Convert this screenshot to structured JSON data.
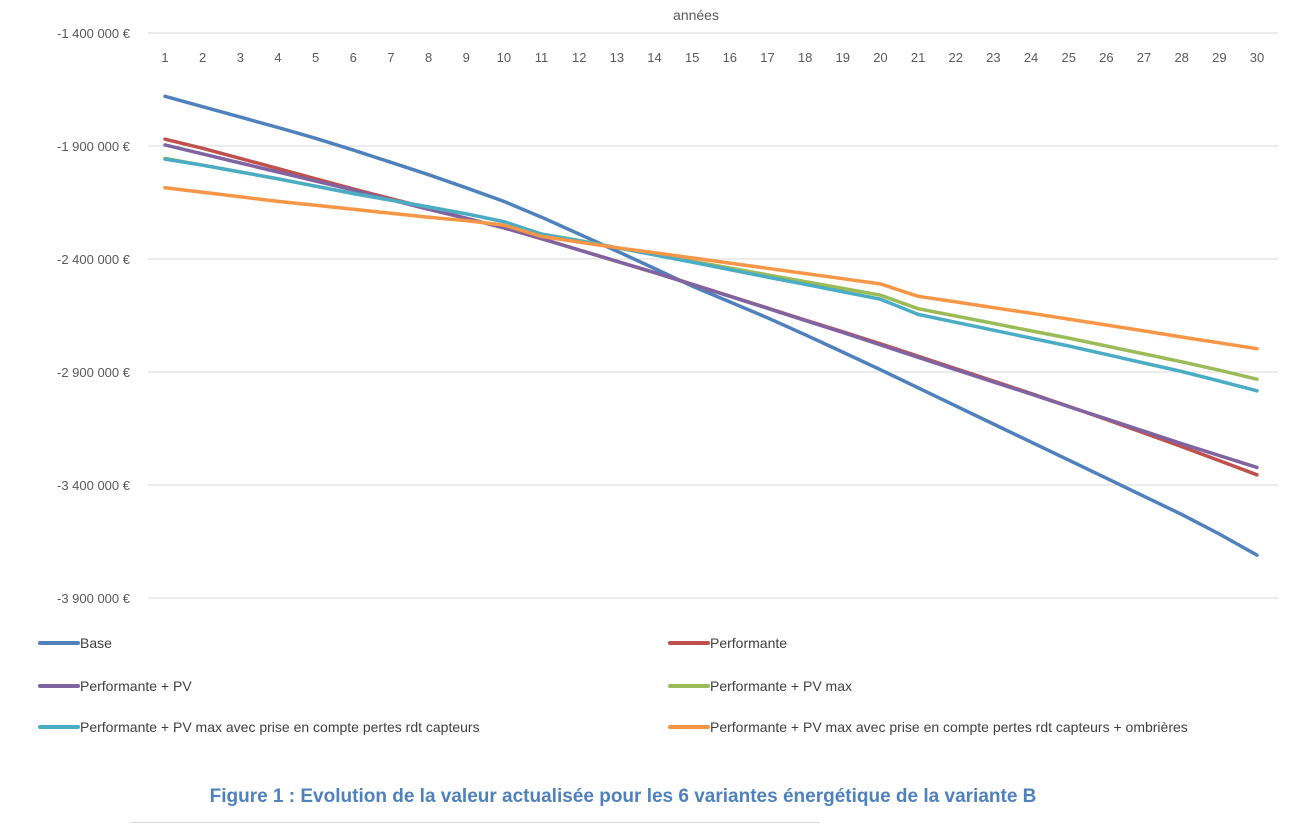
{
  "chart_data": {
    "type": "line",
    "xlabel": "années",
    "ylabel": "",
    "x": [
      1,
      2,
      3,
      4,
      5,
      6,
      7,
      8,
      9,
      10,
      11,
      12,
      13,
      14,
      15,
      16,
      17,
      18,
      19,
      20,
      21,
      22,
      23,
      24,
      25,
      26,
      27,
      28,
      29,
      30
    ],
    "ylim": [
      -3900000,
      -1400000
    ],
    "yticks": [
      -1400000,
      -1900000,
      -2400000,
      -2900000,
      -3400000,
      -3900000
    ],
    "ytick_labels": [
      "-1 400 000 €",
      "-1 900 000 €",
      "-2 400 000 €",
      "-2 900 000 €",
      "-3 400 000 €",
      "-3 900 000 €"
    ],
    "grid": true,
    "legend_position": "bottom",
    "series": [
      {
        "name": "Base",
        "color": "#4f81bd",
        "values": [
          -1680000,
          -1726000,
          -1772000,
          -1818000,
          -1866000,
          -1918000,
          -1972000,
          -2027000,
          -2085000,
          -2145000,
          -2215000,
          -2290000,
          -2365000,
          -2442000,
          -2520000,
          -2590000,
          -2660000,
          -2735000,
          -2812000,
          -2890000,
          -2970000,
          -3050000,
          -3130000,
          -3210000,
          -3290000,
          -3370000,
          -3450000,
          -3530000,
          -3617000,
          -3710000
        ]
      },
      {
        "name": "Performante",
        "color": "#c0504d",
        "values": [
          -1870000,
          -1910000,
          -1955000,
          -2000000,
          -2045000,
          -2090000,
          -2133000,
          -2175000,
          -2220000,
          -2262000,
          -2310000,
          -2360000,
          -2410000,
          -2460000,
          -2512000,
          -2564000,
          -2617000,
          -2670000,
          -2722000,
          -2775000,
          -2830000,
          -2885000,
          -2940000,
          -2995000,
          -3052000,
          -3110000,
          -3170000,
          -3230000,
          -3292000,
          -3355000
        ]
      },
      {
        "name": "Performante + PV",
        "color": "#8064a2",
        "values": [
          -1895000,
          -1935000,
          -1975000,
          -2015000,
          -2055000,
          -2095000,
          -2138000,
          -2180000,
          -2220000,
          -2262000,
          -2310000,
          -2360000,
          -2410000,
          -2460000,
          -2512000,
          -2565000,
          -2618000,
          -2672000,
          -2725000,
          -2780000,
          -2835000,
          -2890000,
          -2944000,
          -2998000,
          -3053000,
          -3107000,
          -3162000,
          -3217000,
          -3270000,
          -3322000
        ]
      },
      {
        "name": "Performante + PV max",
        "color": "#9bbb59",
        "values": [
          -1955000,
          -1985000,
          -2015000,
          -2045000,
          -2078000,
          -2110000,
          -2140000,
          -2170000,
          -2200000,
          -2235000,
          -2290000,
          -2318000,
          -2350000,
          -2380000,
          -2410000,
          -2440000,
          -2470000,
          -2500000,
          -2530000,
          -2560000,
          -2620000,
          -2652000,
          -2685000,
          -2718000,
          -2750000,
          -2785000,
          -2820000,
          -2855000,
          -2892000,
          -2932000
        ]
      },
      {
        "name": "Performante + PV max avec prise en compte pertes rdt capteurs",
        "color": "#4bacc6",
        "values": [
          -1958000,
          -1985000,
          -2015000,
          -2045000,
          -2078000,
          -2110000,
          -2140000,
          -2170000,
          -2200000,
          -2235000,
          -2290000,
          -2320000,
          -2350000,
          -2382000,
          -2414000,
          -2447000,
          -2480000,
          -2512000,
          -2545000,
          -2578000,
          -2645000,
          -2680000,
          -2715000,
          -2750000,
          -2785000,
          -2822000,
          -2860000,
          -2898000,
          -2940000,
          -2983000
        ]
      },
      {
        "name": "Performante + PV max avec prise en compte pertes rdt capteurs + ombrières",
        "color": "#f79646",
        "values": [
          -2085000,
          -2105000,
          -2125000,
          -2145000,
          -2162000,
          -2180000,
          -2198000,
          -2215000,
          -2230000,
          -2250000,
          -2300000,
          -2325000,
          -2350000,
          -2372000,
          -2395000,
          -2418000,
          -2441000,
          -2464000,
          -2487000,
          -2510000,
          -2565000,
          -2590000,
          -2615000,
          -2640000,
          -2666000,
          -2692000,
          -2718000,
          -2745000,
          -2771000,
          -2797000
        ]
      }
    ]
  },
  "caption": "Figure 1 : Evolution de la valeur actualisée pour les 6 variantes énergétique de la variante B"
}
